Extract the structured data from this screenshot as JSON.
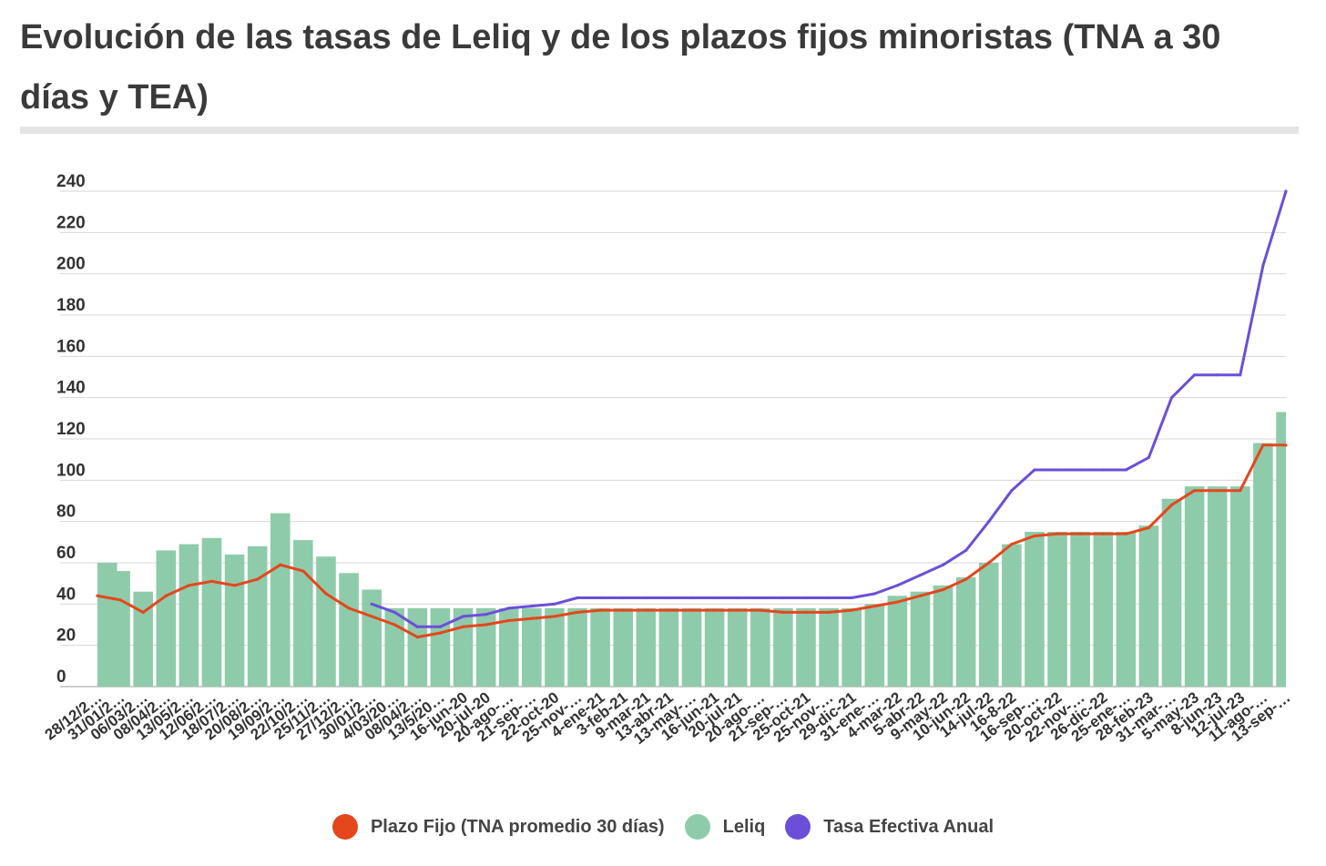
{
  "title": "Evolución de las tasas de Leliq y de los plazos fijos minoristas (TNA a 30 días y TEA)",
  "chart_data": {
    "type": "bar",
    "grid": true,
    "legend_position": "bottom-center",
    "ylim": [
      0,
      240
    ],
    "yticks": [
      "0",
      "20",
      "40",
      "60",
      "80",
      "100",
      "120",
      "140",
      "160",
      "180",
      "200",
      "220",
      "240"
    ],
    "categories": [
      "28/12/2…",
      "31/01/2…",
      "06/03/2…",
      "08/04/2…",
      "13/05/2…",
      "12/06/2…",
      "18/07/2…",
      "20/08/2…",
      "19/09/2…",
      "22/10/2…",
      "25/11/2…",
      "27/12/2…",
      "30/01/2…",
      "4/03/20…",
      "08/04/2…",
      "13/5/20…",
      "16-jun-20",
      "20-jul-20",
      "20-ago-…",
      "21-sep-…",
      "22-oct-20",
      "25-nov-…",
      "4-ene-21",
      "3-feb-21",
      "9-mar-21",
      "13-abr-21",
      "13-may-…",
      "16-jun-21",
      "20-jul-21",
      "20-ago-…",
      "21-sep-…",
      "25-oct-21",
      "25-nov-…",
      "29-dic-21",
      "31-ene-…",
      "4-mar-22",
      "5-abr-22",
      "9-may-22",
      "10-jun-22",
      "14-jul-22",
      "16-8-22",
      "16-sep-…",
      "20-oct-22",
      "22-nov-…",
      "26-dic-22",
      "25-ene-…",
      "28-feb-23",
      "31-mar-…",
      "5-may-23",
      "8-jun-23",
      "12-jul-23",
      "11-ago-…",
      "13-sep-…"
    ],
    "series": [
      {
        "name": "Plazo Fijo (TNA promedio 30 días)",
        "color": "#e4471c",
        "type": "line",
        "values": [
          44,
          42,
          36,
          44,
          49,
          51,
          49,
          52,
          59,
          56,
          45,
          38,
          34,
          30,
          24,
          26,
          29,
          30,
          32,
          33,
          34,
          36,
          37,
          37,
          37,
          37,
          37,
          37,
          37,
          37,
          36,
          36,
          36,
          37,
          39,
          41,
          44,
          47,
          52,
          60,
          69,
          73,
          74,
          74,
          74,
          74,
          77,
          88,
          95,
          95,
          95,
          117,
          117
        ]
      },
      {
        "name": "Leliq",
        "color": "#8ecbaa",
        "type": "bar",
        "values": [
          60,
          56,
          46,
          66,
          69,
          72,
          64,
          68,
          84,
          71,
          63,
          55,
          47,
          38,
          38,
          38,
          38,
          38,
          38,
          38,
          38,
          38,
          38,
          38,
          38,
          38,
          38,
          38,
          38,
          38,
          38,
          38,
          38,
          38,
          40,
          44,
          46,
          49,
          53,
          60,
          69,
          75,
          75,
          75,
          75,
          75,
          78,
          91,
          97,
          97,
          97,
          118,
          133
        ]
      },
      {
        "name": "Tasa Efectiva Anual",
        "color": "#6b4fd8",
        "type": "line",
        "start_category": "30/01/2…",
        "values": [
          null,
          null,
          null,
          null,
          null,
          null,
          null,
          null,
          null,
          null,
          null,
          null,
          40,
          36,
          29,
          29,
          34,
          35,
          38,
          39,
          40,
          43,
          43,
          43,
          43,
          43,
          43,
          43,
          43,
          43,
          43,
          43,
          43,
          43,
          45,
          49,
          54,
          59,
          66,
          80,
          95,
          105,
          105,
          105,
          105,
          105,
          111,
          140,
          151,
          151,
          151,
          204,
          240
        ]
      }
    ]
  },
  "legend": [
    {
      "label": "Plazo Fijo (TNA promedio 30 días)",
      "color": "#e4471c"
    },
    {
      "label": "Leliq",
      "color": "#8ecbaa"
    },
    {
      "label": "Tasa Efectiva Anual",
      "color": "#6b4fd8"
    }
  ]
}
